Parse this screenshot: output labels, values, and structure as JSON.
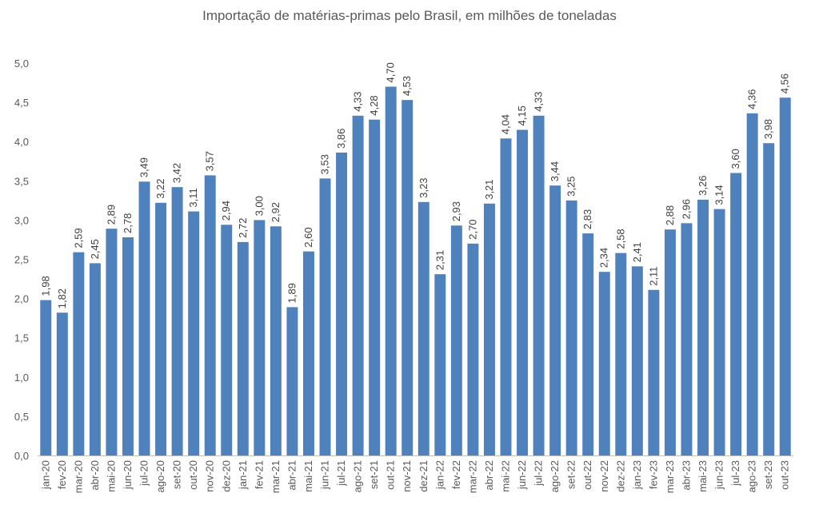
{
  "chart_data": {
    "type": "bar",
    "title": "Importação de matérias-primas pelo Brasil, em milhões de toneladas",
    "xlabel": "",
    "ylabel": "",
    "ylim": [
      0,
      5
    ],
    "yticks": [
      "0,0",
      "0,5",
      "1,0",
      "1,5",
      "2,0",
      "2,5",
      "3,0",
      "3,5",
      "4,0",
      "4,5",
      "5,0"
    ],
    "grid": false,
    "bar_color": "#4F81BD",
    "categories": [
      "jan-20",
      "fev-20",
      "mar-20",
      "abr-20",
      "mai-20",
      "jun-20",
      "jul-20",
      "ago-20",
      "set-20",
      "out-20",
      "nov-20",
      "dez-20",
      "jan-21",
      "fev-21",
      "mar-21",
      "abr-21",
      "mai-21",
      "jun-21",
      "jul-21",
      "ago-21",
      "set-21",
      "out-21",
      "nov-21",
      "dez-21",
      "jan-22",
      "fev-22",
      "mar-22",
      "abr-22",
      "mai-22",
      "jun-22",
      "jul-22",
      "ago-22",
      "set-22",
      "out-22",
      "nov-22",
      "dez-22",
      "jan-23",
      "fev-23",
      "mar-23",
      "abr-23",
      "mai-23",
      "jun-23",
      "jul-23",
      "ago-23",
      "set-23",
      "out-23"
    ],
    "values": [
      1.98,
      1.82,
      2.59,
      2.45,
      2.89,
      2.78,
      3.49,
      3.22,
      3.42,
      3.11,
      3.57,
      2.94,
      2.72,
      3.0,
      2.92,
      1.89,
      2.6,
      3.53,
      3.86,
      4.33,
      4.28,
      4.7,
      4.53,
      3.23,
      2.31,
      2.93,
      2.7,
      3.21,
      4.04,
      4.15,
      4.33,
      3.44,
      3.25,
      2.83,
      2.34,
      2.58,
      2.41,
      2.11,
      2.88,
      2.96,
      3.26,
      3.14,
      3.6,
      4.36,
      3.98,
      4.56
    ],
    "data_labels": [
      "1,98",
      "1,82",
      "2,59",
      "2,45",
      "2,89",
      "2,78",
      "3,49",
      "3,22",
      "3,42",
      "3,11",
      "3,57",
      "2,94",
      "2,72",
      "3,00",
      "2,92",
      "1,89",
      "2,60",
      "3,53",
      "3,86",
      "4,33",
      "4,28",
      "4,70",
      "4,53",
      "3,23",
      "2,31",
      "2,93",
      "2,70",
      "3,21",
      "4,04",
      "4,15",
      "4,33",
      "3,44",
      "3,25",
      "2,83",
      "2,34",
      "2,58",
      "2,41",
      "2,11",
      "2,88",
      "2,96",
      "3,26",
      "3,14",
      "3,60",
      "4,36",
      "3,98",
      "4,56"
    ]
  }
}
